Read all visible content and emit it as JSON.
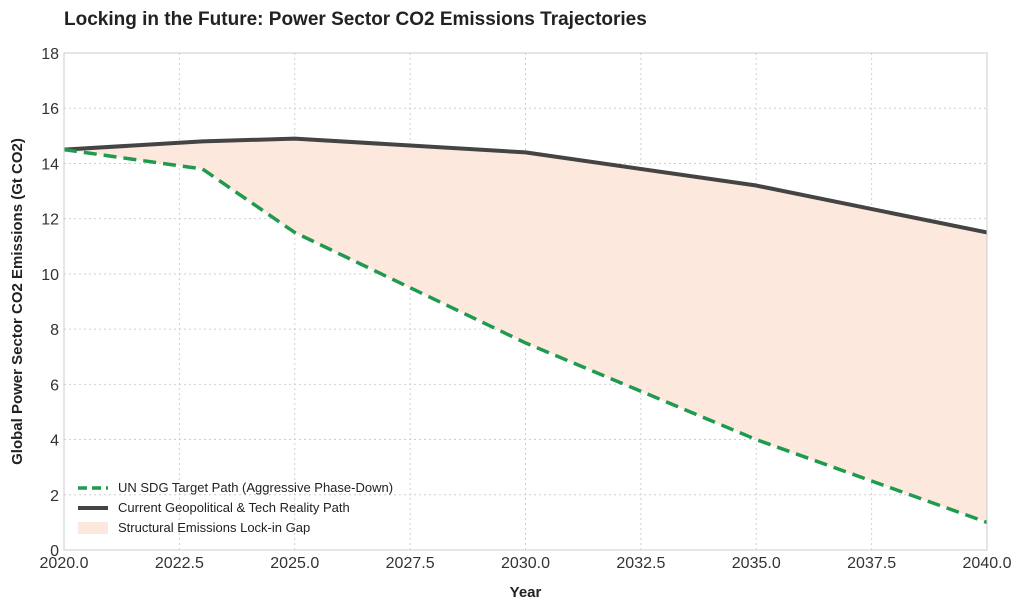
{
  "chart_data": {
    "type": "line",
    "title": "Locking in the Future: Power Sector CO2 Emissions Trajectories",
    "xlabel": "Year",
    "ylabel": "Global Power Sector CO2 Emissions (Gt CO2)",
    "xlim": [
      2020,
      2040
    ],
    "ylim": [
      0,
      18
    ],
    "x_ticks": [
      "2020.0",
      "2022.5",
      "2025.0",
      "2027.5",
      "2030.0",
      "2032.5",
      "2035.0",
      "2037.5",
      "2040.0"
    ],
    "y_ticks": [
      "0",
      "2",
      "4",
      "6",
      "8",
      "10",
      "12",
      "14",
      "16",
      "18"
    ],
    "grid": true,
    "legend_position": "lower-left",
    "series": [
      {
        "name": "UN SDG Target Path (Aggressive Phase-Down)",
        "style": "dashed",
        "color": "#1f9a4e",
        "x": [
          2020,
          2023,
          2025,
          2030,
          2035,
          2040
        ],
        "y": [
          14.5,
          13.8,
          11.5,
          7.5,
          4.0,
          1.0
        ]
      },
      {
        "name": "Current Geopolitical & Tech Reality Path",
        "style": "solid",
        "color": "#444444",
        "x": [
          2020,
          2023,
          2025,
          2030,
          2035,
          2040
        ],
        "y": [
          14.5,
          14.8,
          14.9,
          14.4,
          13.2,
          11.5
        ]
      }
    ],
    "fill_between": {
      "name": "Structural Emissions Lock-in Gap",
      "color": "#fde8dd"
    }
  }
}
